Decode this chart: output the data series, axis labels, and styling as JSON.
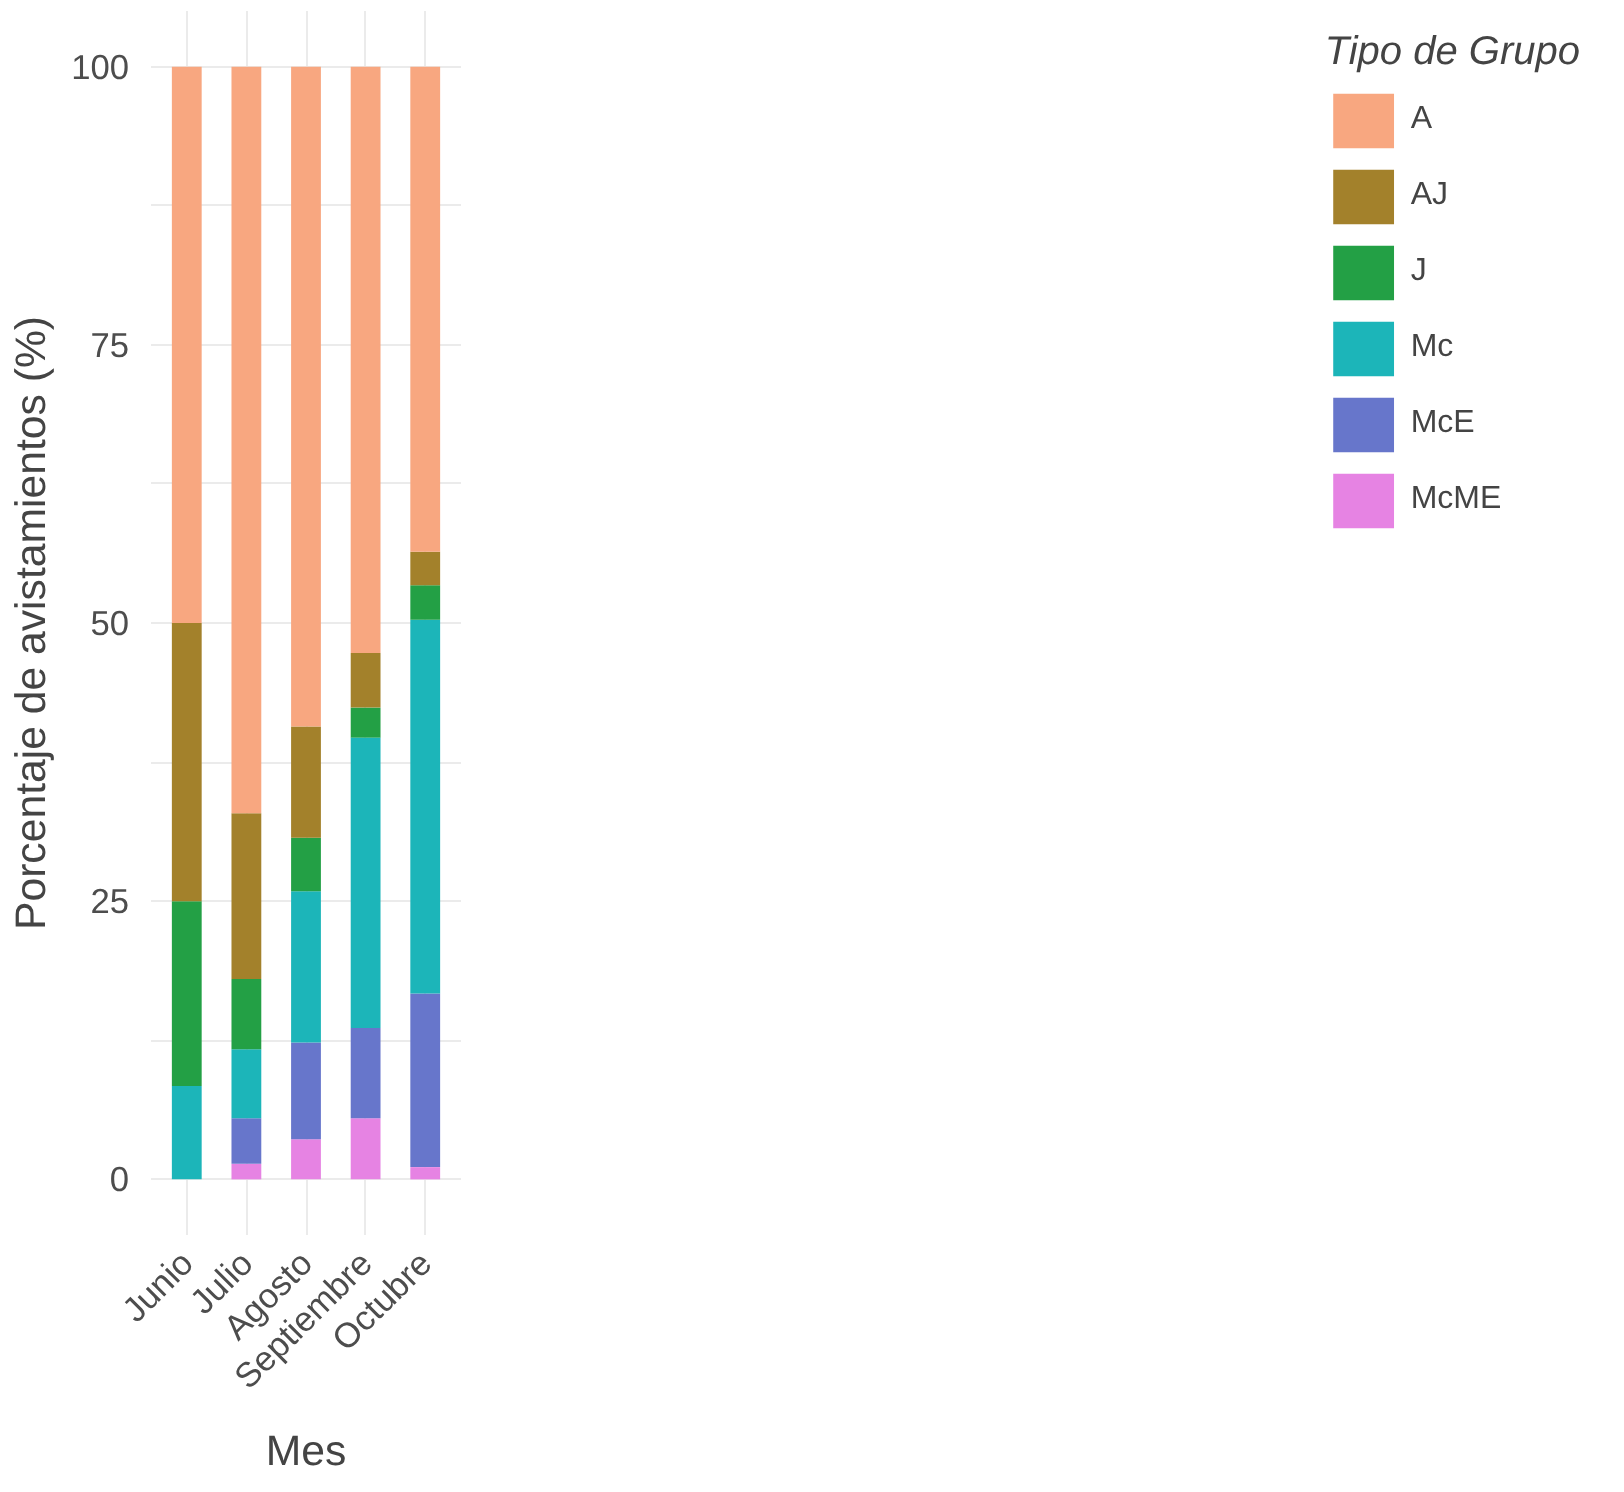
{
  "chart_data": {
    "type": "bar",
    "stacked": true,
    "xlabel": "Mes",
    "ylabel": "Porcentaje de avistamientos (%)",
    "legend_title": "Tipo de Grupo",
    "categories": [
      "Junio",
      "Julio",
      "Agosto",
      "Septiembre",
      "Octubre"
    ],
    "series": [
      {
        "name": "McME",
        "color": "#e683e3",
        "values": [
          0,
          1.4,
          3.6,
          5.5,
          1.1
        ]
      },
      {
        "name": "McE",
        "color": "#6776cb",
        "values": [
          0,
          4.1,
          8.7,
          8.1,
          15.6
        ]
      },
      {
        "name": "Mc",
        "color": "#1cb5b9",
        "values": [
          8.4,
          6.2,
          13.6,
          26.1,
          33.6
        ]
      },
      {
        "name": "J",
        "color": "#23a045",
        "values": [
          16.6,
          6.3,
          4.8,
          2.7,
          3.1
        ]
      },
      {
        "name": "AJ",
        "color": "#a3812b",
        "values": [
          25,
          14.9,
          10.0,
          4.9,
          3.0
        ]
      },
      {
        "name": "A",
        "color": "#f8a780",
        "values": [
          50,
          67.1,
          59.3,
          52.7,
          43.6
        ]
      }
    ],
    "ylim": [
      -5,
      105
    ],
    "yticks": [
      0,
      {
        "value": 12.5,
        "label": null
      },
      25,
      {
        "value": 37.5,
        "label": null
      },
      50,
      {
        "value": 62.5,
        "label": null
      },
      75,
      {
        "value": 87.5,
        "label": null
      },
      100
    ],
    "grid": true,
    "legend": "right"
  }
}
